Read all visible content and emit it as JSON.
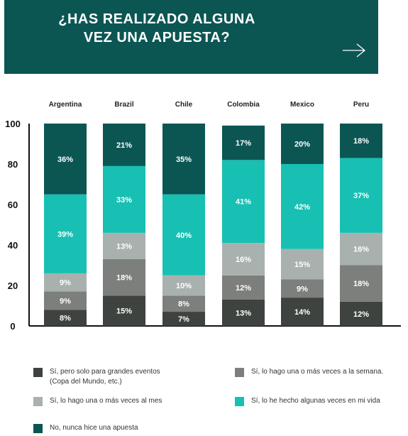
{
  "banner": {
    "title_line1": "¿HAS REALIZADO ALGUNA",
    "title_line2": "VEZ UNA APUESTA?"
  },
  "colors": {
    "banner": "#0b5653",
    "s1": "#3e4340",
    "s2": "#7c7f7c",
    "s3": "#a9b1ae",
    "s4": "#17c0b3",
    "s5": "#0b5653"
  },
  "chart_data": {
    "type": "bar",
    "stacked": true,
    "categories": [
      "Argentina",
      "Brazil",
      "Chile",
      "Colombia",
      "Mexico",
      "Peru"
    ],
    "ylim": [
      0,
      100
    ],
    "yticks": [
      0,
      20,
      40,
      60,
      80,
      100
    ],
    "series": [
      {
        "name": "Sí, pero solo para grandes eventos\n(Copa del Mundo, etc.)",
        "color": "#3e4340",
        "values": [
          8,
          15,
          7,
          13,
          14,
          12
        ]
      },
      {
        "name": "Sí, lo hago una o más veces a la semana.",
        "color": "#7c7f7c",
        "values": [
          9,
          18,
          8,
          12,
          9,
          18
        ]
      },
      {
        "name": "Sí, lo hago una o más veces al mes",
        "color": "#a9b1ae",
        "values": [
          9,
          13,
          10,
          16,
          15,
          16
        ]
      },
      {
        "name": "Sí, lo he hecho algunas veces en mi vida",
        "color": "#17c0b3",
        "values": [
          39,
          33,
          40,
          41,
          42,
          37
        ]
      },
      {
        "name": "No, nunca hice una apuesta",
        "color": "#0b5653",
        "values": [
          36,
          21,
          35,
          17,
          20,
          18
        ]
      }
    ]
  }
}
